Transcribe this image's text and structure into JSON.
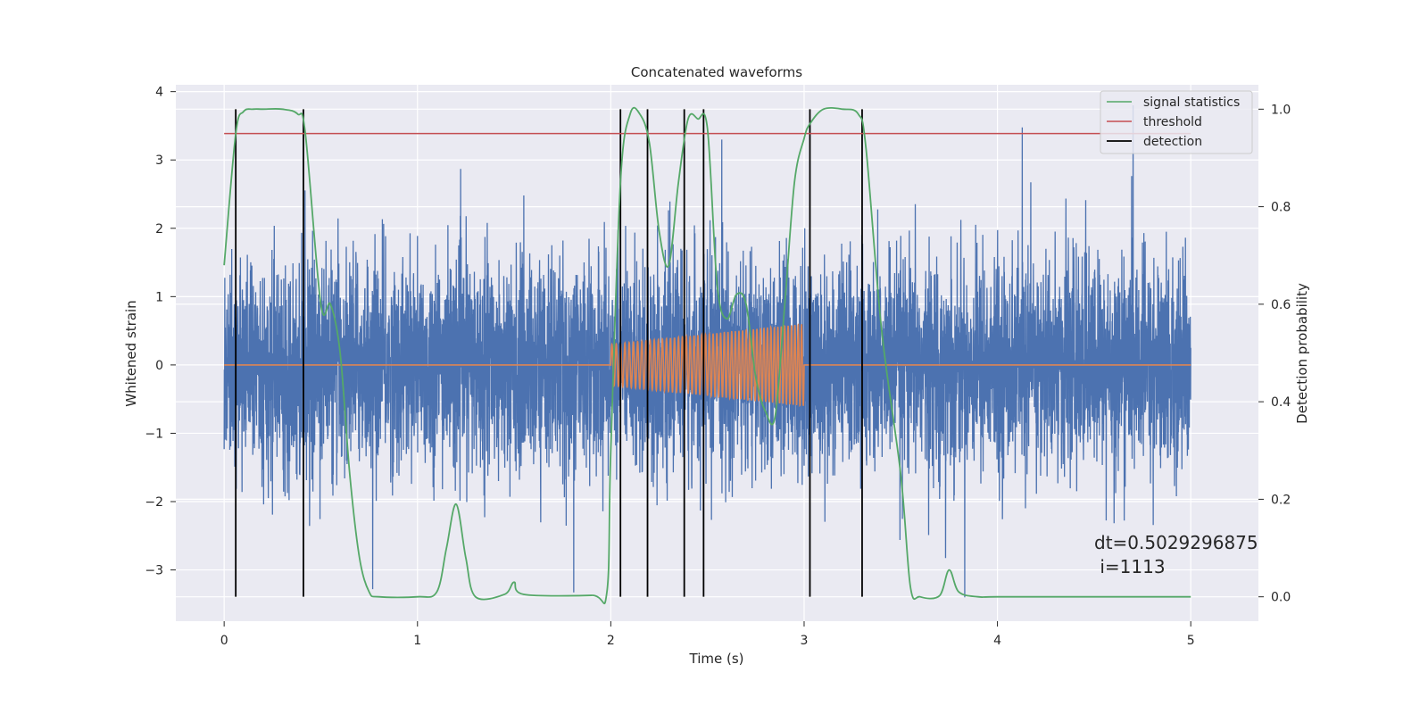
{
  "chart_data": {
    "type": "line",
    "title": "Concatenated waveforms",
    "xlabel": "Time (s)",
    "ylabel_left": "Whitened strain",
    "ylabel_right": "Detection probability",
    "xlim": [
      -0.25,
      5.35
    ],
    "ylim_left": [
      -3.75,
      4.1
    ],
    "ylim_right": [
      -0.05,
      1.05
    ],
    "xticks": [
      0,
      1,
      2,
      3,
      4,
      5
    ],
    "yticks_left": [
      -3,
      -2,
      -1,
      0,
      1,
      2,
      3,
      4
    ],
    "yticks_right": [
      0.0,
      0.2,
      0.4,
      0.6,
      0.8,
      1.0
    ],
    "grid": true,
    "legend_position": "top-right",
    "colors": {
      "strain": "#4c72b0",
      "injected_signal": "#dd8452",
      "signal_statistics": "#55a868",
      "threshold": "#c44e52",
      "detection": "#000000",
      "background": "#eaeaf2"
    },
    "series": [
      {
        "name": "",
        "role": "whitened strain noise",
        "x_range": [
          0,
          5
        ],
        "approx_std": 0.75,
        "approx_min": -3.4,
        "approx_max": 3.8
      },
      {
        "name": "",
        "role": "injected chirp waveform",
        "x_range": [
          2,
          3
        ],
        "amplitude_start": 0.3,
        "amplitude_end": 0.6,
        "baseline": 0
      },
      {
        "name": "signal statistics",
        "axis": "right",
        "x": [
          0,
          0.06,
          0.1,
          0.15,
          0.2,
          0.3,
          0.38,
          0.42,
          0.5,
          0.55,
          0.6,
          0.65,
          0.7,
          0.75,
          0.8,
          1.0,
          1.1,
          1.15,
          1.2,
          1.25,
          1.3,
          1.45,
          1.5,
          1.55,
          1.9,
          1.98,
          2.0,
          2.05,
          2.1,
          2.15,
          2.2,
          2.25,
          2.3,
          2.35,
          2.4,
          2.45,
          2.5,
          2.55,
          2.6,
          2.65,
          2.7,
          2.75,
          2.8,
          2.85,
          2.9,
          2.95,
          3.0,
          3.03,
          3.1,
          3.2,
          3.28,
          3.32,
          3.4,
          3.5,
          3.55,
          3.6,
          3.7,
          3.75,
          3.8,
          3.9,
          4.0,
          4.5,
          5.0
        ],
        "values": [
          0.68,
          0.95,
          0.995,
          1.0,
          1.0,
          1.0,
          0.99,
          0.95,
          0.6,
          0.6,
          0.5,
          0.25,
          0.08,
          0.01,
          0.0,
          0.0,
          0.01,
          0.1,
          0.19,
          0.08,
          0.0,
          0.005,
          0.03,
          0.005,
          0.003,
          0.01,
          0.3,
          0.85,
          0.99,
          0.99,
          0.93,
          0.75,
          0.68,
          0.85,
          0.98,
          0.98,
          0.96,
          0.64,
          0.57,
          0.62,
          0.6,
          0.45,
          0.38,
          0.37,
          0.6,
          0.85,
          0.94,
          0.97,
          1.0,
          1.0,
          0.99,
          0.92,
          0.55,
          0.25,
          0.02,
          0.0,
          0.002,
          0.055,
          0.01,
          0.0,
          0.0,
          0.0,
          0.0
        ]
      },
      {
        "name": "threshold",
        "axis": "right",
        "x": [
          0,
          5
        ],
        "values": [
          0.95,
          0.95
        ]
      },
      {
        "name": "detection",
        "type": "vlines",
        "axis": "right",
        "x": [
          0.06,
          0.41,
          2.05,
          2.19,
          2.38,
          2.48,
          3.03,
          3.3
        ],
        "ymin": 0.0,
        "ymax": 1.0
      }
    ],
    "annotations": [
      "dt=0.5029296875",
      " i=1113"
    ]
  }
}
